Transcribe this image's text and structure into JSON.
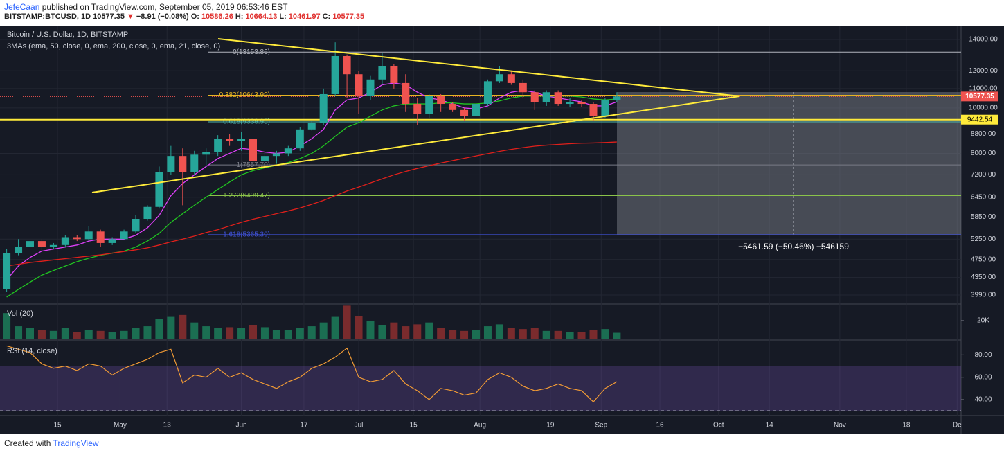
{
  "header": {
    "author": "JefeCaan",
    "published": "published on TradingView.com, September 05, 2019 06:53:46 EST",
    "quote": [
      {
        "text": "BITSTAMP:BTCUSD, 1D",
        "color": "#222222"
      },
      {
        "text": "10577.35",
        "color": "#222222"
      },
      {
        "text": "▼",
        "color": "#e0312f"
      },
      {
        "text": "−8.91 (−0.08%)",
        "color": "#222222"
      },
      {
        "text": "O:",
        "color": "#222222"
      },
      {
        "text": "10586.26",
        "color": "#e0312f"
      },
      {
        "text": "H:",
        "color": "#222222"
      },
      {
        "text": "10664.13",
        "color": "#e0312f"
      },
      {
        "text": "L:",
        "color": "#222222"
      },
      {
        "text": "10461.97",
        "color": "#e0312f"
      },
      {
        "text": "C:",
        "color": "#222222"
      },
      {
        "text": "10577.35",
        "color": "#e0312f"
      }
    ]
  },
  "footer": {
    "created": "Created with",
    "brand": "TradingView"
  },
  "chart_data": {
    "type": "candlestick",
    "title": "Bitcoin / U.S. Dollar, 1D, BITSTAMP",
    "subtitle": "3MAs (ema, 50, close, 0, ema, 200, close, 0, ema, 21, close, 0)",
    "log_scale": true,
    "grid": true,
    "up_color": "#26a69a",
    "down_color": "#ef5350",
    "x": [
      1,
      4,
      7,
      10,
      13,
      16,
      19,
      22,
      25,
      28,
      31,
      34,
      37,
      40,
      43,
      46,
      49,
      52,
      55,
      58,
      61,
      64,
      67,
      70,
      73,
      76,
      79,
      82,
      85,
      88,
      91,
      94,
      97,
      100,
      103,
      106,
      109,
      112,
      115,
      118,
      121,
      124,
      127,
      130,
      133,
      136,
      139,
      142,
      145,
      148,
      151,
      154,
      157
    ],
    "xlim": [
      -0.7,
      245
    ],
    "xticks": [
      {
        "value": 14,
        "label": "15"
      },
      {
        "value": 30,
        "label": "May"
      },
      {
        "value": 42,
        "label": "13"
      },
      {
        "value": 61,
        "label": "Jun"
      },
      {
        "value": 77,
        "label": "17"
      },
      {
        "value": 91,
        "label": "Jul"
      },
      {
        "value": 105,
        "label": "15"
      },
      {
        "value": 122,
        "label": "Aug"
      },
      {
        "value": 140,
        "label": "19"
      },
      {
        "value": 153,
        "label": "Sep"
      },
      {
        "value": 168,
        "label": "16"
      },
      {
        "value": 183,
        "label": "Oct"
      },
      {
        "value": 196,
        "label": "14"
      },
      {
        "value": 214,
        "label": "Nov"
      },
      {
        "value": 231,
        "label": "18"
      },
      {
        "value": 244,
        "label": "De"
      }
    ],
    "open": [
      4100,
      4900,
      5050,
      5200,
      5050,
      5100,
      5300,
      5250,
      5450,
      5150,
      5250,
      5450,
      5800,
      6150,
      7300,
      7900,
      7300,
      7950,
      8050,
      8600,
      8500,
      8600,
      7700,
      7900,
      8000,
      8200,
      9000,
      9300,
      10700,
      12900,
      11800,
      10600,
      11500,
      12300,
      11300,
      10200,
      9700,
      10600,
      10200,
      9900,
      9600,
      10200,
      11400,
      11800,
      11300,
      10800,
      10300,
      10800,
      10200,
      10300,
      10200,
      9600,
      10400
    ],
    "high": [
      5000,
      5250,
      5300,
      5250,
      5150,
      5350,
      5350,
      5600,
      5500,
      5300,
      5500,
      5900,
      6200,
      7500,
      8300,
      8200,
      8100,
      8200,
      8750,
      8800,
      8900,
      8700,
      8050,
      8100,
      8300,
      9100,
      9400,
      11000,
      13800,
      13000,
      12000,
      11700,
      13100,
      12400,
      11800,
      10500,
      10700,
      10700,
      10300,
      10000,
      10300,
      11500,
      12300,
      12000,
      11500,
      10900,
      10900,
      10900,
      10500,
      10400,
      10300,
      10500,
      10800
    ],
    "low": [
      4050,
      4850,
      5000,
      4950,
      5000,
      5050,
      5200,
      5200,
      5050,
      5100,
      5250,
      5400,
      5750,
      6100,
      7200,
      6200,
      7200,
      7500,
      7900,
      8300,
      8100,
      7600,
      7500,
      7600,
      7900,
      8100,
      8950,
      9200,
      10600,
      10500,
      9700,
      10400,
      11200,
      11000,
      9800,
      9200,
      9500,
      9800,
      9800,
      9400,
      9500,
      10100,
      11300,
      11200,
      10500,
      9900,
      10100,
      10100,
      10050,
      10050,
      9400,
      9500,
      10300
    ],
    "close": [
      4900,
      5050,
      5200,
      5050,
      5100,
      5300,
      5250,
      5450,
      5150,
      5250,
      5450,
      5800,
      6150,
      7300,
      7900,
      7300,
      7950,
      8050,
      8600,
      8500,
      8600,
      7700,
      7900,
      8000,
      8200,
      9000,
      9300,
      10700,
      12900,
      11800,
      10600,
      11500,
      12300,
      11300,
      10200,
      9700,
      10600,
      10200,
      9900,
      9600,
      10200,
      11400,
      11800,
      11300,
      10800,
      10300,
      10800,
      10200,
      10300,
      10200,
      9600,
      10400,
      10577.35
    ],
    "series": [
      {
        "color": "#e040fb",
        "values": [
          4300,
          4600,
          4800,
          4950,
          5000,
          5050,
          5100,
          5200,
          5250,
          5250,
          5250,
          5350,
          5550,
          5900,
          6500,
          6900,
          7200,
          7500,
          7800,
          8000,
          8200,
          8150,
          8050,
          8000,
          8050,
          8300,
          8600,
          9000,
          9900,
          10400,
          10500,
          10800,
          11200,
          11300,
          11200,
          10800,
          10500,
          10400,
          10200,
          10000,
          9950,
          10100,
          10500,
          10800,
          10900,
          10800,
          10600,
          10500,
          10400,
          10300,
          10100,
          10100,
          10300
        ]
      },
      {
        "color": "#21c521",
        "values": [
          3950,
          4100,
          4250,
          4400,
          4500,
          4600,
          4700,
          4780,
          4850,
          4900,
          4950,
          5050,
          5200,
          5400,
          5700,
          5950,
          6200,
          6450,
          6700,
          6950,
          7200,
          7350,
          7450,
          7550,
          7650,
          7800,
          8000,
          8300,
          8700,
          9100,
          9300,
          9600,
          9900,
          10100,
          10200,
          10200,
          10200,
          10250,
          10250,
          10200,
          10200,
          10250,
          10350,
          10500,
          10600,
          10600,
          10600,
          10600,
          10600,
          10550,
          10450,
          10400,
          10450
        ]
      },
      {
        "color": "#e0201b",
        "values": [
          4600,
          4640,
          4680,
          4710,
          4740,
          4770,
          4800,
          4830,
          4860,
          4900,
          4940,
          4980,
          5030,
          5100,
          5180,
          5250,
          5330,
          5420,
          5500,
          5600,
          5700,
          5790,
          5870,
          5950,
          6030,
          6120,
          6230,
          6350,
          6500,
          6650,
          6780,
          6920,
          7060,
          7200,
          7320,
          7430,
          7530,
          7630,
          7720,
          7810,
          7900,
          7990,
          8080,
          8160,
          8230,
          8290,
          8330,
          8360,
          8390,
          8410,
          8420,
          8440,
          8460
        ]
      }
    ],
    "ylim": [
      3830,
      14730
    ],
    "yticks": [
      {
        "value": 14000,
        "label": "14000.00"
      },
      {
        "value": 12000,
        "label": "12000.00"
      },
      {
        "value": 11000,
        "label": "11000.00"
      },
      {
        "value": 10000,
        "label": "10000.00"
      },
      {
        "value": 8800,
        "label": "8800.00"
      },
      {
        "value": 8000,
        "label": "8000.00"
      },
      {
        "value": 7200,
        "label": "7200.00"
      },
      {
        "value": 6450,
        "label": "6450.00"
      },
      {
        "value": 5850,
        "label": "5850.00"
      },
      {
        "value": 5250,
        "label": "5250.00"
      },
      {
        "value": 4750,
        "label": "4750.00"
      },
      {
        "value": 4350,
        "label": "4350.00"
      },
      {
        "value": 3990,
        "label": "3990.00"
      }
    ],
    "fib_levels": [
      {
        "value": 13153.86,
        "label": "0(13153.86)",
        "color": "#b2b5be"
      },
      {
        "value": 10643.99,
        "label": "0.382(10643.99)",
        "color": "#e6b422"
      },
      {
        "value": 9338.95,
        "label": "0.618(9338.95)",
        "color": "#4db6ac"
      },
      {
        "value": 7557.7,
        "label": "1(7557.70)",
        "color": "#787b86"
      },
      {
        "value": 6499.47,
        "label": "1.272(6499.47)",
        "color": "#8bc34a"
      },
      {
        "value": 5365.3,
        "label": "1.618(5365.30)",
        "color": "#3f51d5"
      }
    ],
    "last_price": {
      "value": 10577.35,
      "label": "10577.35",
      "color": "#ef5350"
    },
    "line_price": {
      "value": 9442.54,
      "label": "9442.54",
      "color": "#ffeb3b"
    },
    "measure_label": "−5461.59 (−50.46%) −546159",
    "volume": {
      "title": "Vol (20)",
      "ylim": [
        0,
        37000
      ],
      "yticks": [
        {
          "value": 20000,
          "label": "20K"
        }
      ],
      "values": [
        28000,
        14000,
        12000,
        10000,
        9000,
        12000,
        8000,
        10000,
        9000,
        8000,
        9000,
        12000,
        14000,
        22000,
        24000,
        26000,
        18000,
        14000,
        12000,
        13000,
        12000,
        15000,
        13000,
        10000,
        10000,
        12000,
        14000,
        18000,
        24000,
        36000,
        25000,
        20000,
        15000,
        18000,
        14000,
        16000,
        18000,
        12000,
        10000,
        9000,
        10000,
        14000,
        16000,
        12000,
        11000,
        12000,
        9000,
        9000,
        8000,
        8000,
        10000,
        11000,
        7000
      ]
    },
    "rsi": {
      "title": "RSI (14, close)",
      "color": "#f39c35",
      "ylim": [
        27,
        92
      ],
      "levels": [
        30,
        70
      ],
      "yticks": [
        {
          "value": 40,
          "label": "40.00"
        },
        {
          "value": 60,
          "label": "60.00"
        },
        {
          "value": 80,
          "label": "80.00"
        }
      ],
      "values": [
        88,
        85,
        82,
        72,
        68,
        70,
        66,
        72,
        70,
        62,
        68,
        72,
        76,
        82,
        85,
        55,
        62,
        60,
        68,
        60,
        64,
        58,
        54,
        50,
        56,
        60,
        68,
        72,
        78,
        86,
        60,
        56,
        58,
        66,
        54,
        48,
        40,
        50,
        48,
        44,
        46,
        58,
        64,
        60,
        52,
        48,
        50,
        54,
        50,
        48,
        38,
        50,
        56
      ]
    }
  }
}
